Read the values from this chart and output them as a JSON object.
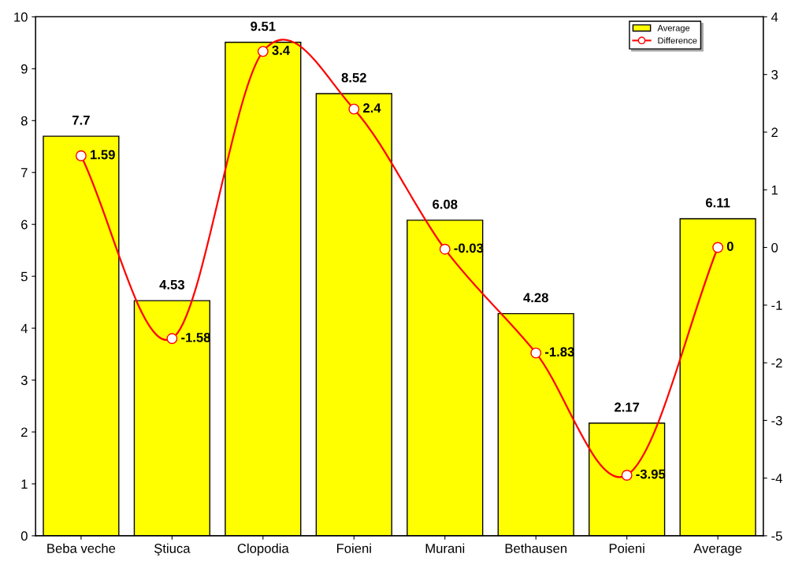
{
  "chart_data": {
    "type": "bar",
    "categories": [
      "Beba veche",
      "Ştiuca",
      "Clopodia",
      "Foieni",
      "Murani",
      "Bethausen",
      "Poieni",
      "Average"
    ],
    "series": [
      {
        "name": "Average",
        "color": "#ffff00",
        "values": [
          7.7,
          4.53,
          9.51,
          8.52,
          6.08,
          4.28,
          2.17,
          6.11
        ]
      },
      {
        "name": "Difference",
        "type": "line",
        "axis": "y2",
        "color": "#ff0000",
        "marker": "circle",
        "values": [
          1.59,
          -1.58,
          3.4,
          2.4,
          -0.03,
          -1.83,
          -3.95,
          0
        ]
      }
    ],
    "ylim": [
      0,
      10
    ],
    "yticks": [
      0,
      1,
      2,
      3,
      4,
      5,
      6,
      7,
      8,
      9,
      10
    ],
    "y2lim": [
      -5,
      4
    ],
    "y2ticks": [
      -5,
      -4,
      -3,
      -2,
      -1,
      0,
      1,
      2,
      3,
      4
    ],
    "data_labels": true,
    "legend": "top right",
    "grid": false
  }
}
